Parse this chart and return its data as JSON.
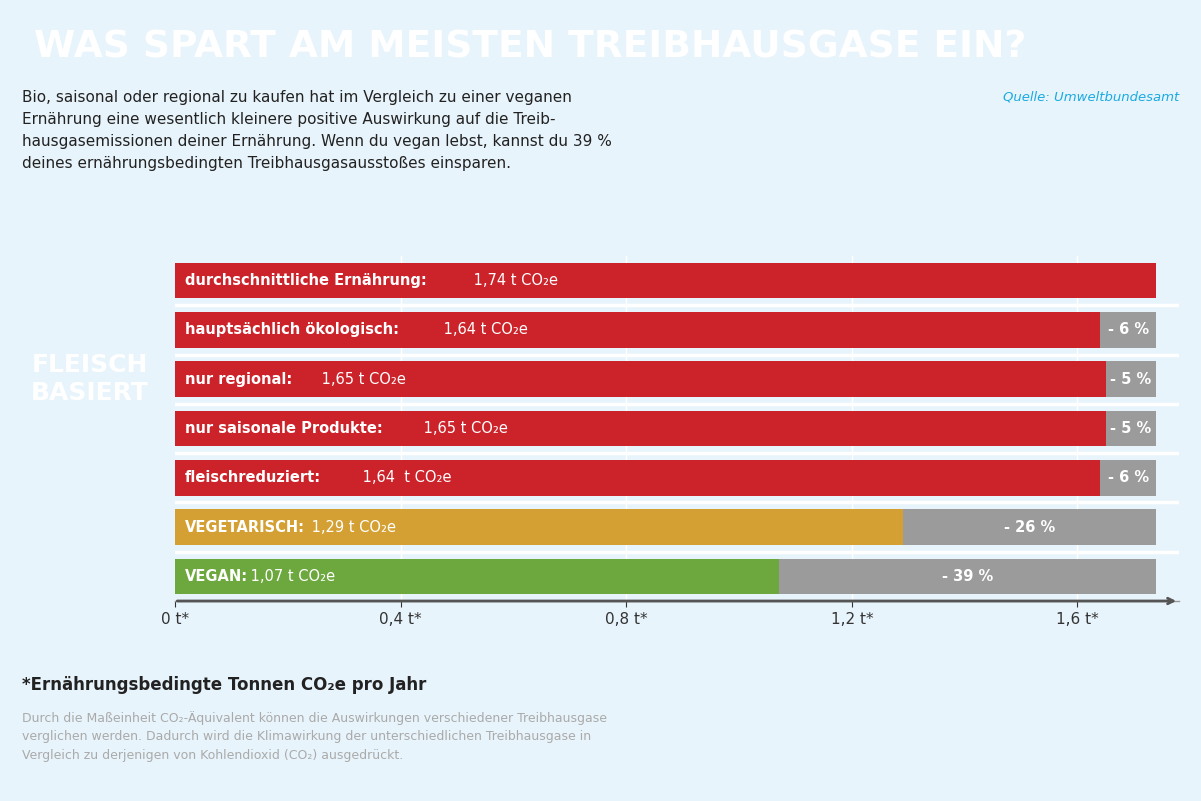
{
  "title": "WAS SPART AM MEISTEN TREIBHAUSGASE EIN?",
  "title_bg": "#1BAAE1",
  "title_color": "#FFFFFF",
  "bg_color": "#E8F4FB",
  "subtitle_line1": "Bio, saisonal oder regional zu kaufen hat im Vergleich zu einer veganen",
  "subtitle_line2": "Ernährung eine wesentlich kleinere positive Auswirkung auf die Treib-",
  "subtitle_line3": "hausgasemissionen deiner Ernährung. Wenn du vegan lebst, kannst du 39 %",
  "subtitle_line4": "deines ernährungsbedingten Treibhausgasausstoßes einsparen.",
  "source": "Quelle: Umweltbundesamt",
  "bars": [
    {
      "label_bold": "durchschnittliche Ernährung:",
      "label_normal": " 1,74 t CO₂e",
      "value": 1.74,
      "remainder": 0.0,
      "color": "#CC2229",
      "remainder_color": null,
      "pct": null,
      "group": "fleisch"
    },
    {
      "label_bold": "hauptsächlich ökologisch:",
      "label_normal": " 1,64 t CO₂e",
      "value": 1.64,
      "remainder": 0.1,
      "color": "#CC2229",
      "remainder_color": "#9B9B9B",
      "pct": "- 6 %",
      "group": "fleisch"
    },
    {
      "label_bold": "nur regional:",
      "label_normal": " 1,65 t CO₂e",
      "value": 1.65,
      "remainder": 0.09,
      "color": "#CC2229",
      "remainder_color": "#9B9B9B",
      "pct": "- 5 %",
      "group": "fleisch"
    },
    {
      "label_bold": "nur saisonale Produkte:",
      "label_normal": " 1,65 t CO₂e",
      "value": 1.65,
      "remainder": 0.09,
      "color": "#CC2229",
      "remainder_color": "#9B9B9B",
      "pct": "- 5 %",
      "group": "fleisch"
    },
    {
      "label_bold": "fleischreduziert:",
      "label_normal": " 1,64  t CO₂e",
      "value": 1.64,
      "remainder": 0.1,
      "color": "#CC2229",
      "remainder_color": "#9B9B9B",
      "pct": "- 6 %",
      "group": "fleisch"
    },
    {
      "label_bold": "VEGETARISCH:",
      "label_normal": " 1,29 t CO₂e",
      "value": 1.29,
      "remainder": 0.45,
      "color": "#D4A033",
      "remainder_color": "#9B9B9B",
      "pct": "- 26 %",
      "group": "vegetarisch"
    },
    {
      "label_bold": "VEGAN:",
      "label_normal": " 1,07 t CO₂e",
      "value": 1.07,
      "remainder": 0.67,
      "color": "#6CA83E",
      "remainder_color": "#9B9B9B",
      "pct": "- 39 %",
      "group": "vegan"
    }
  ],
  "fleisch_label": "FLEISCH\nBASIERT",
  "xmax": 1.74,
  "xdisplay_max": 1.78,
  "xticks": [
    0.0,
    0.4,
    0.8,
    1.2,
    1.6
  ],
  "xtick_labels": [
    "0 t*",
    "0,4 t*",
    "0,8 t*",
    "1,2 t*",
    "1,6 t*"
  ],
  "footnote_bold": "*Ernährungsbedingte Tonnen CO₂e pro Jahr",
  "footnote_small": "Durch die Maßeinheit CO₂-Äquivalent können die Auswirkungen verschiedener Treibhausgase\nverglichen werden. Dadurch wird die Klimawirkung der unterschiedlichen Treibhausgase in\nVergleich zu derjenigen von Kohlendioxid (CO₂) ausgedrückt."
}
